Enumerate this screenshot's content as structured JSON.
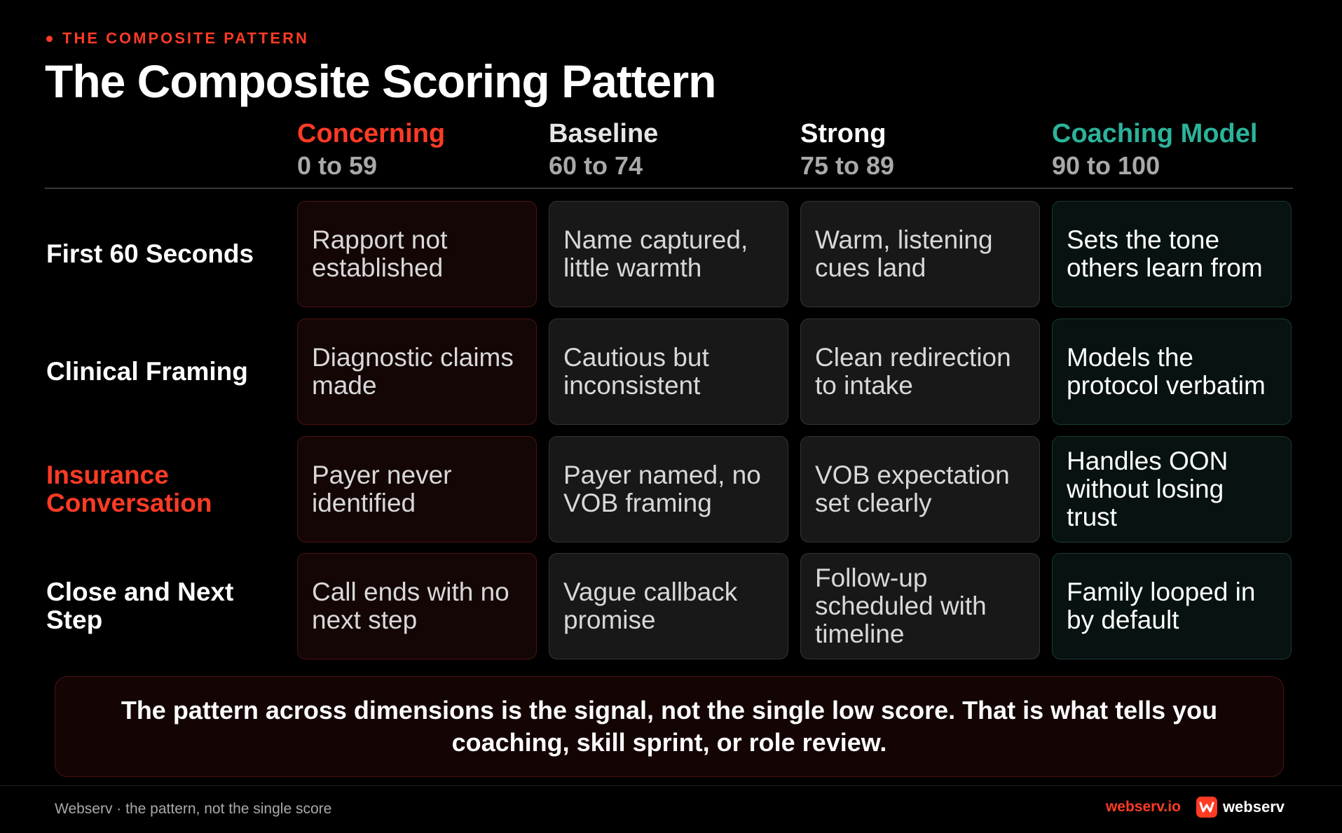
{
  "header": {
    "eyebrow": "THE COMPOSITE PATTERN",
    "title": "The Composite Scoring Pattern"
  },
  "columns": [
    {
      "name": "Concerning",
      "range": "0 to 59",
      "color": "#ff3b24"
    },
    {
      "name": "Baseline",
      "range": "60 to 74",
      "color": "#e6e6e6"
    },
    {
      "name": "Strong",
      "range": "75 to 89",
      "color": "#ffffff"
    },
    {
      "name": "Coaching Model",
      "range": "90 to 100",
      "color": "#2bb39b"
    }
  ],
  "rows": [
    {
      "label": "First 60 Seconds",
      "highlight": false,
      "cells": [
        "Rapport not established",
        "Name captured, little warmth",
        "Warm, listening cues land",
        "Sets the tone others learn from"
      ]
    },
    {
      "label": "Clinical Framing",
      "highlight": false,
      "cells": [
        "Diagnostic claims made",
        "Cautious but inconsistent",
        "Clean redirection to intake",
        "Models the protocol verbatim"
      ]
    },
    {
      "label": "Insurance Conversation",
      "highlight": true,
      "cells": [
        "Payer never identified",
        "Payer named, no VOB framing",
        "VOB expectation set clearly",
        "Handles OON without losing trust"
      ]
    },
    {
      "label": "Close and Next Step",
      "highlight": false,
      "cells": [
        "Call ends with no next step",
        "Vague callback promise",
        "Follow-up scheduled with timeline",
        "Family looped in by default"
      ]
    }
  ],
  "callout": "The pattern across dimensions is the signal, not the single low score. That is what tells you coaching, skill sprint, or role review.",
  "footer": {
    "caption": "Webserv · the pattern, not the single score",
    "url": "webserv.io",
    "brand": "webserv",
    "brand_icon": "webserv-logo-icon"
  },
  "colors": {
    "accent": "#ff3b24",
    "coaching": "#2bb39b",
    "background": "#000000"
  }
}
